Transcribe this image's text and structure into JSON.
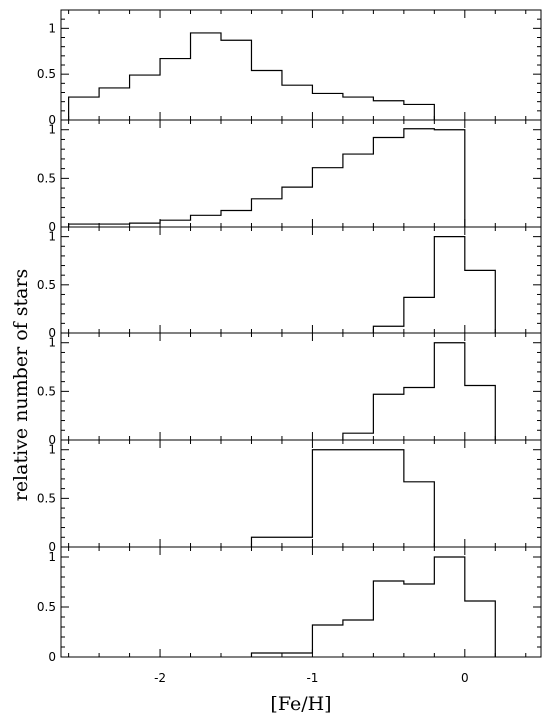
{
  "chart_data": {
    "type": "histogram",
    "layout": "six vertically stacked panels sharing the x axis",
    "xlabel": "[Fe/H]",
    "ylabel": "relative number of stars",
    "xlim": [
      -2.65,
      0.5
    ],
    "x_tick_labels": [
      {
        "value": -2,
        "text": "-2"
      },
      {
        "value": -1,
        "text": "-1"
      },
      {
        "value": 0,
        "text": "0"
      }
    ],
    "y_tick_labels": [
      {
        "value": 0,
        "text": "0"
      },
      {
        "value": 0.5,
        "text": "0.5"
      },
      {
        "value": 1,
        "text": "1"
      }
    ],
    "bin_width": 0.2,
    "panels": [
      {
        "ylim": [
          0,
          1.2
        ],
        "bins": [
          {
            "x0": -2.6,
            "y": 0.25
          },
          {
            "x0": -2.4,
            "y": 0.35
          },
          {
            "x0": -2.2,
            "y": 0.49
          },
          {
            "x0": -2.0,
            "y": 0.67
          },
          {
            "x0": -1.8,
            "y": 0.95
          },
          {
            "x0": -1.6,
            "y": 0.87
          },
          {
            "x0": -1.4,
            "y": 0.54
          },
          {
            "x0": -1.2,
            "y": 0.38
          },
          {
            "x0": -1.0,
            "y": 0.29
          },
          {
            "x0": -0.8,
            "y": 0.25
          },
          {
            "x0": -0.6,
            "y": 0.21
          },
          {
            "x0": -0.4,
            "y": 0.17
          }
        ]
      },
      {
        "ylim": [
          0,
          1.1
        ],
        "bins": [
          {
            "x0": -2.6,
            "y": 0.03
          },
          {
            "x0": -2.4,
            "y": 0.03
          },
          {
            "x0": -2.2,
            "y": 0.04
          },
          {
            "x0": -2.0,
            "y": 0.07
          },
          {
            "x0": -1.8,
            "y": 0.12
          },
          {
            "x0": -1.6,
            "y": 0.17
          },
          {
            "x0": -1.4,
            "y": 0.29
          },
          {
            "x0": -1.2,
            "y": 0.41
          },
          {
            "x0": -1.0,
            "y": 0.61
          },
          {
            "x0": -0.8,
            "y": 0.75
          },
          {
            "x0": -0.6,
            "y": 0.92
          },
          {
            "x0": -0.4,
            "y": 1.01
          },
          {
            "x0": -0.2,
            "y": 1.0
          }
        ]
      },
      {
        "ylim": [
          0,
          1.1
        ],
        "bins": [
          {
            "x0": -0.6,
            "y": 0.07
          },
          {
            "x0": -0.4,
            "y": 0.37
          },
          {
            "x0": -0.2,
            "y": 1.0
          },
          {
            "x0": 0.0,
            "y": 0.65
          }
        ]
      },
      {
        "ylim": [
          0,
          1.1
        ],
        "bins": [
          {
            "x0": -0.8,
            "y": 0.07
          },
          {
            "x0": -0.6,
            "y": 0.47
          },
          {
            "x0": -0.4,
            "y": 0.54
          },
          {
            "x0": -0.2,
            "y": 1.0
          },
          {
            "x0": 0.0,
            "y": 0.56
          }
        ]
      },
      {
        "ylim": [
          0,
          1.1
        ],
        "bins": [
          {
            "x0": -1.4,
            "y": 0.1
          },
          {
            "x0": -1.2,
            "y": 0.1
          },
          {
            "x0": -1.0,
            "y": 1.0
          },
          {
            "x0": -0.8,
            "y": 1.0
          },
          {
            "x0": -0.6,
            "y": 1.0
          },
          {
            "x0": -0.4,
            "y": 0.67
          }
        ]
      },
      {
        "ylim": [
          0,
          1.1
        ],
        "bins": [
          {
            "x0": -1.4,
            "y": 0.04
          },
          {
            "x0": -1.2,
            "y": 0.04
          },
          {
            "x0": -1.0,
            "y": 0.32
          },
          {
            "x0": -0.8,
            "y": 0.37
          },
          {
            "x0": -0.6,
            "y": 0.76
          },
          {
            "x0": -0.4,
            "y": 0.73
          },
          {
            "x0": -0.2,
            "y": 1.0
          },
          {
            "x0": 0.0,
            "y": 0.56
          }
        ]
      }
    ]
  }
}
